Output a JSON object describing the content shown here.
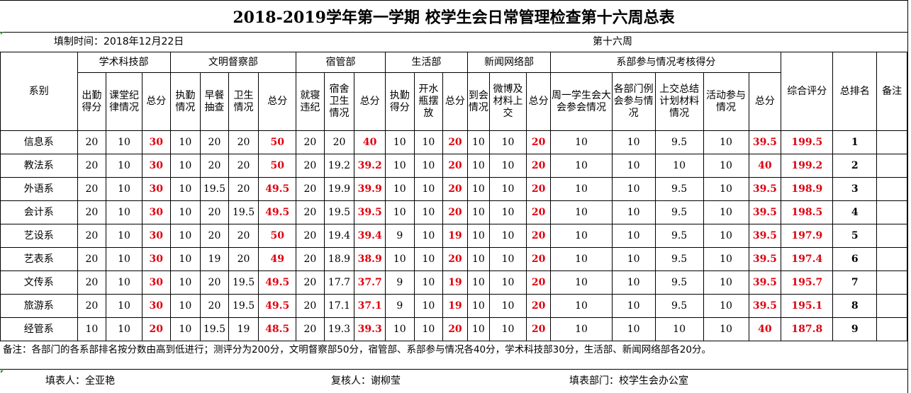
{
  "title": "2018-2019学年第一学期  校学生会日常管理检查第十六周总表",
  "meta": {
    "fill_time": "填制时间：2018年12月22日",
    "week": "第十六周"
  },
  "header_groups": [
    {
      "label": "系别",
      "span": 1
    },
    {
      "label": "学术科技部",
      "span": 3
    },
    {
      "label": "文明督察部",
      "span": 4
    },
    {
      "label": "宿管部",
      "span": 3
    },
    {
      "label": "生活部",
      "span": 3
    },
    {
      "label": "新闻网络部",
      "span": 3
    },
    {
      "label": "系部参与情况考核得分",
      "span": 5
    },
    {
      "label": "综合评分",
      "span": 1
    },
    {
      "label": "总排名",
      "span": 1
    },
    {
      "label": "备注",
      "span": 1
    }
  ],
  "sub_headers": [
    "出勤得分",
    "课堂纪律情况",
    "总分",
    "执勤情况",
    "早餐抽查",
    "卫生情况",
    "总分",
    "就寝违纪",
    "宿舍卫生情况",
    "总分",
    "执勤得分",
    "开水瓶摆放",
    "总分",
    "到会情况",
    "微博及材料上交",
    "总分",
    "周一学生会大会参会情况",
    "各部门例会参与情况",
    "上交总结计划材料情况",
    "活动参与情况",
    "总分"
  ],
  "red_columns": [
    2,
    6,
    9,
    12,
    15,
    20,
    21
  ],
  "rows": [
    {
      "dept": "信息系",
      "values": [
        "20",
        "10",
        "30",
        "10",
        "20",
        "20",
        "50",
        "20",
        "20",
        "40",
        "10",
        "10",
        "20",
        "10",
        "10",
        "20",
        "10",
        "10",
        "9.5",
        "10",
        "39.5",
        "199.5",
        "1",
        ""
      ]
    },
    {
      "dept": "教法系",
      "values": [
        "20",
        "10",
        "30",
        "10",
        "20",
        "20",
        "50",
        "20",
        "19.2",
        "39.2",
        "10",
        "10",
        "20",
        "10",
        "10",
        "20",
        "10",
        "10",
        "10",
        "10",
        "40",
        "199.2",
        "2",
        ""
      ]
    },
    {
      "dept": "外语系",
      "values": [
        "20",
        "10",
        "30",
        "10",
        "19.5",
        "20",
        "49.5",
        "20",
        "19.9",
        "39.9",
        "10",
        "10",
        "20",
        "10",
        "10",
        "20",
        "10",
        "10",
        "9.5",
        "10",
        "39.5",
        "198.9",
        "3",
        ""
      ]
    },
    {
      "dept": "会计系",
      "values": [
        "20",
        "10",
        "30",
        "10",
        "20",
        "19.5",
        "49.5",
        "20",
        "19.5",
        "39.5",
        "10",
        "10",
        "20",
        "10",
        "10",
        "20",
        "10",
        "10",
        "9.5",
        "10",
        "39.5",
        "198.5",
        "4",
        ""
      ]
    },
    {
      "dept": "艺设系",
      "values": [
        "20",
        "10",
        "30",
        "10",
        "20",
        "20",
        "50",
        "20",
        "19.4",
        "39.4",
        "9",
        "10",
        "19",
        "10",
        "10",
        "20",
        "10",
        "10",
        "9.5",
        "10",
        "39.5",
        "197.9",
        "5",
        ""
      ]
    },
    {
      "dept": "艺表系",
      "values": [
        "20",
        "10",
        "30",
        "10",
        "19",
        "20",
        "49",
        "20",
        "18.9",
        "38.9",
        "10",
        "10",
        "20",
        "10",
        "10",
        "20",
        "10",
        "10",
        "9.5",
        "10",
        "39.5",
        "197.4",
        "6",
        ""
      ]
    },
    {
      "dept": "文传系",
      "values": [
        "20",
        "10",
        "30",
        "10",
        "20",
        "19.5",
        "49.5",
        "20",
        "17.7",
        "37.7",
        "9",
        "10",
        "19",
        "10",
        "10",
        "20",
        "10",
        "10",
        "9.5",
        "10",
        "39.5",
        "195.7",
        "7",
        ""
      ]
    },
    {
      "dept": "旅游系",
      "values": [
        "20",
        "10",
        "30",
        "10",
        "20",
        "19.5",
        "49.5",
        "20",
        "17.1",
        "37.1",
        "9",
        "10",
        "19",
        "10",
        "10",
        "20",
        "10",
        "10",
        "9.5",
        "10",
        "39.5",
        "195.1",
        "8",
        ""
      ]
    },
    {
      "dept": "经管系",
      "values": [
        "10",
        "10",
        "20",
        "10",
        "19.5",
        "19",
        "48.5",
        "20",
        "19.3",
        "39.3",
        "10",
        "10",
        "20",
        "10",
        "10",
        "20",
        "10",
        "10",
        "10",
        "10",
        "40",
        "187.8",
        "9",
        ""
      ]
    }
  ],
  "note": "备注：各部门的各系部排名按分数由高到低进行；测评分为200分，文明督察部50分，宿管部、系部参与情况各40分，学术科技部30分，生活部、新闻网络部各20分。",
  "footer": {
    "filler": "填表人：全亚艳",
    "reviewer": "复核人：谢柳莹",
    "dept": "填表部门：校学生会办公室"
  }
}
